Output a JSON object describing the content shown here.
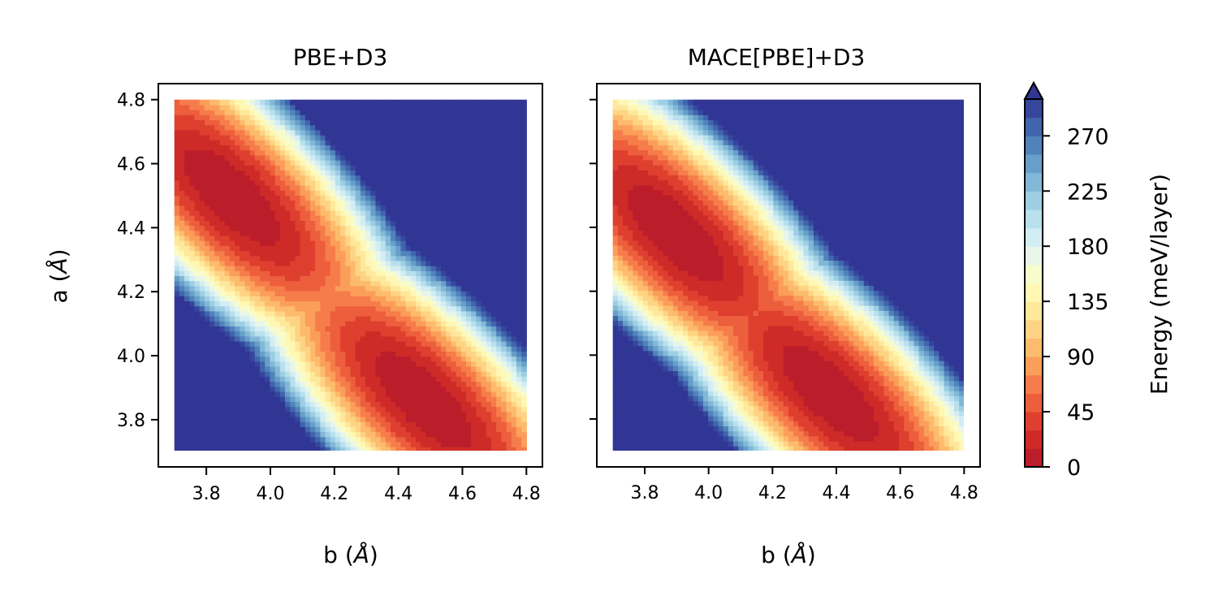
{
  "chart_data": [
    {
      "type": "heatmap",
      "subtype": "filled-contour",
      "title": "PBE+D3",
      "xlabel": "b",
      "ylabel": "a",
      "axis_unit": "Å",
      "xlim": [
        3.65,
        4.85
      ],
      "ylim": [
        3.65,
        4.85
      ],
      "data_extent": {
        "b": [
          3.7,
          4.8
        ],
        "a": [
          3.7,
          4.8
        ]
      },
      "xticks": [
        "3.8",
        "4.0",
        "4.2",
        "4.4",
        "4.6",
        "4.8"
      ],
      "yticks": [
        "3.8",
        "4.0",
        "4.2",
        "4.4",
        "4.6",
        "4.8"
      ],
      "minima": [
        {
          "b": 3.88,
          "a": 4.5,
          "energy": 0
        },
        {
          "b": 4.48,
          "a": 3.86,
          "energy": 0
        }
      ],
      "saturated_region": "upper-right and lower-left corners ≥ 300 meV/layer",
      "grid": false
    },
    {
      "type": "heatmap",
      "subtype": "filled-contour",
      "title": "MACE[PBE]+D3",
      "xlabel": "b",
      "ylabel": "",
      "axis_unit": "Å",
      "xlim": [
        3.65,
        4.85
      ],
      "ylim": [
        3.65,
        4.85
      ],
      "data_extent": {
        "b": [
          3.7,
          4.8
        ],
        "a": [
          3.7,
          4.8
        ]
      },
      "xticks": [
        "3.8",
        "4.0",
        "4.2",
        "4.4",
        "4.6",
        "4.8"
      ],
      "yticks": [],
      "minima": [
        {
          "b": 3.9,
          "a": 4.38,
          "energy": 0
        },
        {
          "b": 4.38,
          "a": 3.88,
          "energy": 0
        }
      ],
      "saturated_region": "upper-right and lower-left corners ≥ 300 meV/layer",
      "grid": false
    }
  ],
  "colorbar": {
    "label": "Energy (meV/layer)",
    "min": 0,
    "max": 300,
    "levels": 20,
    "extend": "max",
    "ticks": [
      "0",
      "45",
      "90",
      "135",
      "180",
      "225",
      "270"
    ],
    "colormap": "RdYlBu_r",
    "colors": [
      "#b2182b",
      "#d73027",
      "#f46d43",
      "#fdae61",
      "#fee090",
      "#ffffbf",
      "#e0f3f8",
      "#abd9e9",
      "#74add1",
      "#4575b4",
      "#313695"
    ]
  }
}
